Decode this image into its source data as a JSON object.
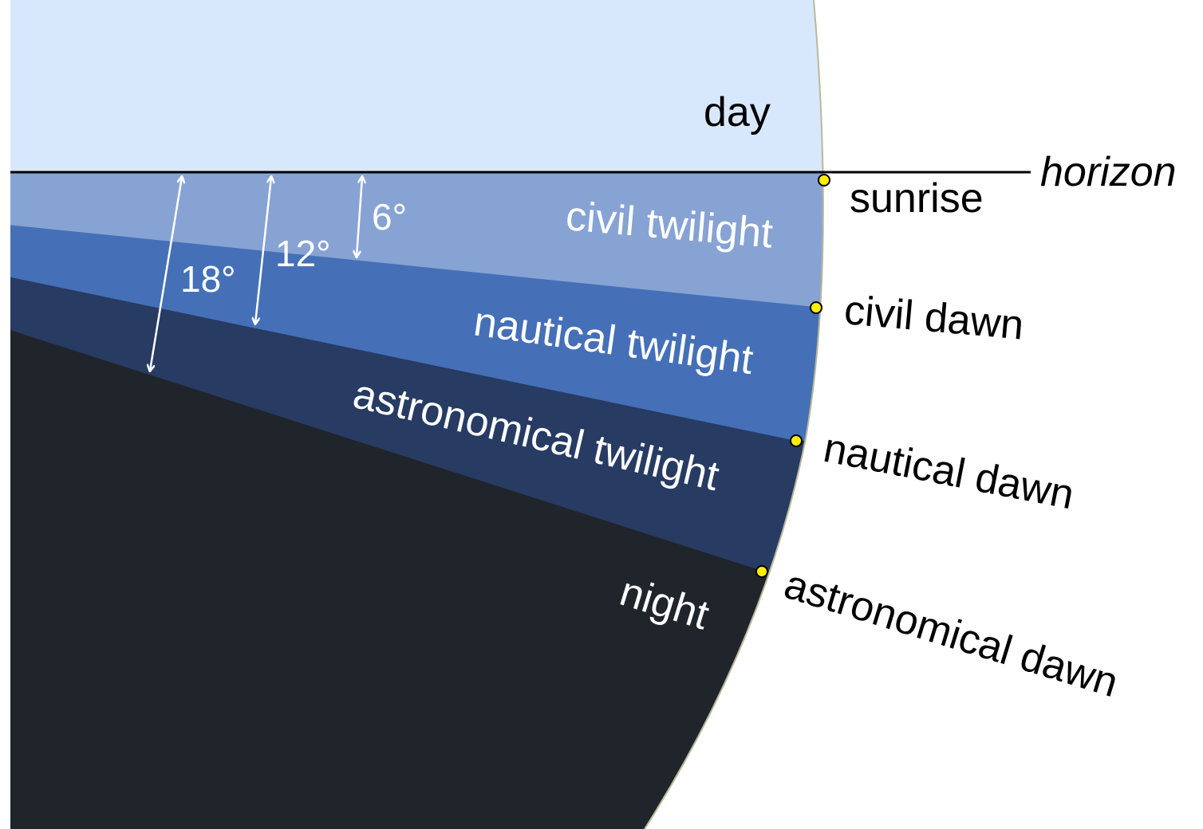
{
  "colors": {
    "day": "#d8e8fc",
    "civil_twilight": "#87a3d3",
    "nautical_twilight": "#4570b8",
    "astronomical_twilight": "#273b63",
    "night": "#20252c",
    "marker": "#ffee00"
  },
  "labels": {
    "day": "day",
    "civil_twilight": "civil twilight",
    "nautical_twilight": "nautical twilight",
    "astronomical_twilight": "astronomical twilight",
    "night": "night",
    "horizon": "horizon",
    "sunrise": "sunrise",
    "civil_dawn": "civil dawn",
    "nautical_dawn": "nautical dawn",
    "astronomical_dawn": "astronomical dawn"
  },
  "angles": {
    "civil": "6°",
    "nautical": "12°",
    "astronomical": "18°"
  }
}
